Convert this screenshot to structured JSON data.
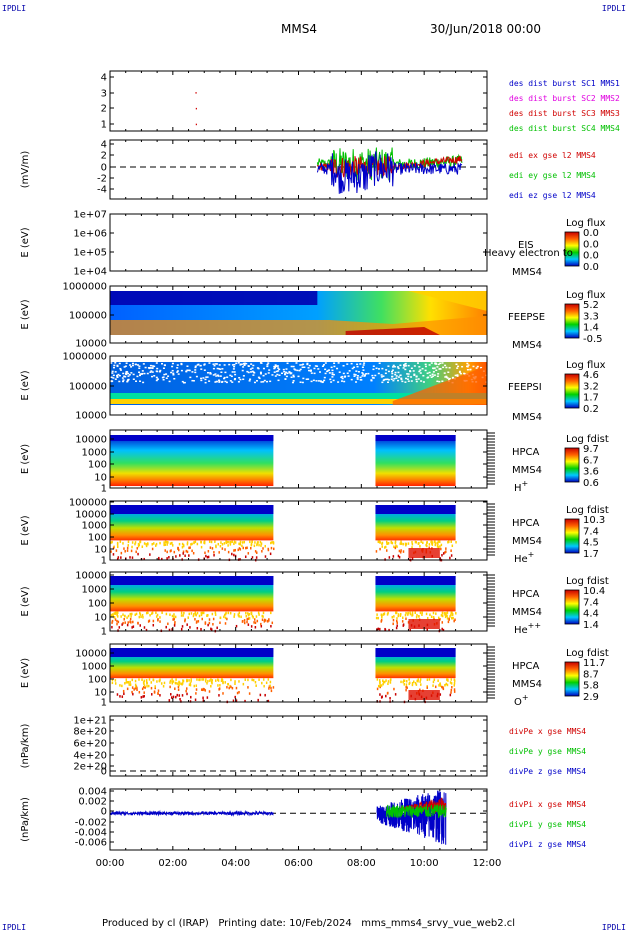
{
  "header": {
    "corner_tl": "IPDLI",
    "corner_tr": "IPDLI",
    "corner_bl": "IPDLI",
    "corner_br": "IPDLI",
    "spacecraft": "MMS4",
    "date": "30/Jun/2018 00:00"
  },
  "footer": {
    "text": "Produced by cl (IRAP)   Printing date: 10/Feb/2024   mms_mms4_srvy_vue_web2.cl"
  },
  "colors": {
    "dark_blue": "#0000c8",
    "magenta": "#e000e0",
    "red": "#d00000",
    "green": "#00c000"
  },
  "chart_data": {
    "type": "stacked-timeseries",
    "x_ticks": [
      "00:00",
      "02:00",
      "04:00",
      "06:00",
      "08:00",
      "10:00",
      "12:00"
    ],
    "x_range_hours": [
      0,
      12
    ],
    "panels": [
      {
        "id": "dist-burst",
        "type": "scatter",
        "ylabel": "",
        "y_ticks": [
          "4",
          "3",
          "2",
          "1"
        ],
        "y_range": [
          0.6,
          4.4
        ],
        "legend": [
          {
            "label": "des dist burst SC1 MMS1",
            "color": "#0000c8"
          },
          {
            "label": "des dist burst SC2 MMS2",
            "color": "#e000e0"
          },
          {
            "label": "des dist burst SC3 MMS3",
            "color": "#d00000"
          },
          {
            "label": "des dist burst SC4 MMS4",
            "color": "#00c000"
          }
        ],
        "points": [
          {
            "t": 2.72,
            "y": 3
          },
          {
            "t": 2.73,
            "y": 2
          },
          {
            "t": 2.73,
            "y": 1
          }
        ]
      },
      {
        "id": "edi-efield",
        "type": "line",
        "ylabel": "(mV/m)",
        "y_ticks": [
          "4",
          "2",
          "0",
          "-2",
          "-4"
        ],
        "y_range": [
          -5.2,
          4.4
        ],
        "legend": [
          {
            "label": "edi ex gse l2 MMS4",
            "color": "#d00000"
          },
          {
            "label": "edi ey gse l2 MMS4",
            "color": "#00c000"
          },
          {
            "label": "edi ez gse l2 MMS4",
            "color": "#0000c8"
          }
        ],
        "active_interval_hours": [
          6.6,
          11.2
        ]
      },
      {
        "id": "eis",
        "type": "heatmap",
        "ylabel": "E (eV)",
        "y_ticks": [
          "1e+07",
          "1e+06",
          "1e+05",
          "1e+04"
        ],
        "labels": [
          "EIS",
          "Heavy electron to",
          "MMS4"
        ],
        "colorbar": {
          "title": "Log flux",
          "ticks": [
            "0.0",
            "0.0",
            "0.0",
            "0.0"
          ]
        }
      },
      {
        "id": "feepse",
        "type": "heatmap",
        "ylabel": "E (eV)",
        "y_ticks": [
          "1000000",
          "100000",
          "10000"
        ],
        "labels": [
          "FEEPSE",
          "MMS4"
        ],
        "colorbar": {
          "title": "Log flux",
          "ticks": [
            "5.2",
            "3.3",
            "1.4",
            "-0.5"
          ]
        }
      },
      {
        "id": "feepsi",
        "type": "heatmap",
        "ylabel": "E (eV)",
        "y_ticks": [
          "1000000",
          "100000",
          "10000"
        ],
        "labels": [
          "FEEPSI",
          "MMS4"
        ],
        "colorbar": {
          "title": "Log flux",
          "ticks": [
            "4.6",
            "3.2",
            "1.7",
            "0.2"
          ]
        }
      },
      {
        "id": "hpca-h",
        "type": "heatmap",
        "ylabel": "E (eV)",
        "y_ticks": [
          "10000",
          "1000",
          "100",
          "10",
          "1"
        ],
        "labels": [
          "HPCA",
          "MMS4",
          "H+"
        ],
        "colorbar": {
          "title": "Log fdist",
          "ticks": [
            "9.7",
            "6.7",
            "3.6",
            "0.6"
          ]
        },
        "data_intervals_hours": [
          [
            0,
            5.2
          ],
          [
            8.45,
            11.0
          ]
        ]
      },
      {
        "id": "hpca-he1",
        "type": "heatmap",
        "ylabel": "E (eV)",
        "y_ticks": [
          "100000",
          "10000",
          "1000",
          "100",
          "10",
          "1"
        ],
        "labels": [
          "HPCA",
          "MMS4",
          "He+"
        ],
        "colorbar": {
          "title": "Log fdist",
          "ticks": [
            "10.3",
            "7.4",
            "4.5",
            "1.7"
          ]
        },
        "data_intervals_hours": [
          [
            0,
            5.2
          ],
          [
            8.45,
            11.0
          ]
        ]
      },
      {
        "id": "hpca-he2",
        "type": "heatmap",
        "ylabel": "E (eV)",
        "y_ticks": [
          "10000",
          "1000",
          "100",
          "10",
          "1"
        ],
        "labels": [
          "HPCA",
          "MMS4",
          "He++"
        ],
        "colorbar": {
          "title": "Log fdist",
          "ticks": [
            "10.4",
            "7.4",
            "4.4",
            "1.4"
          ]
        },
        "data_intervals_hours": [
          [
            0,
            5.2
          ],
          [
            8.45,
            11.0
          ]
        ]
      },
      {
        "id": "hpca-o",
        "type": "heatmap",
        "ylabel": "E (eV)",
        "y_ticks": [
          "10000",
          "1000",
          "100",
          "10",
          "1"
        ],
        "labels": [
          "HPCA",
          "MMS4",
          "O+"
        ],
        "colorbar": {
          "title": "Log fdist",
          "ticks": [
            "11.7",
            "8.7",
            "5.8",
            "2.9"
          ]
        },
        "data_intervals_hours": [
          [
            0,
            5.2
          ],
          [
            8.45,
            11.0
          ]
        ]
      },
      {
        "id": "divpe",
        "type": "line",
        "ylabel": "(nPa/km)",
        "y_ticks": [
          "1e+21",
          "8e+20",
          "6e+20",
          "4e+20",
          "2e+20",
          "0"
        ],
        "legend": [
          {
            "label": "divPe x gse MMS4",
            "color": "#d00000"
          },
          {
            "label": "divPe y gse MMS4",
            "color": "#00c000"
          },
          {
            "label": "divPe z gse MMS4",
            "color": "#0000c8"
          }
        ]
      },
      {
        "id": "divpi",
        "type": "line",
        "ylabel": "(nPa/km)",
        "y_ticks": [
          "0.004",
          "0.002",
          "0",
          "-0.002",
          "-0.004",
          "-0.006"
        ],
        "y_range": [
          -0.0068,
          0.0045
        ],
        "legend": [
          {
            "label": "divPi x gse MMS4",
            "color": "#d00000"
          },
          {
            "label": "divPi y gse MMS4",
            "color": "#00c000"
          },
          {
            "label": "divPi z gse MMS4",
            "color": "#0000c8"
          }
        ]
      }
    ]
  }
}
